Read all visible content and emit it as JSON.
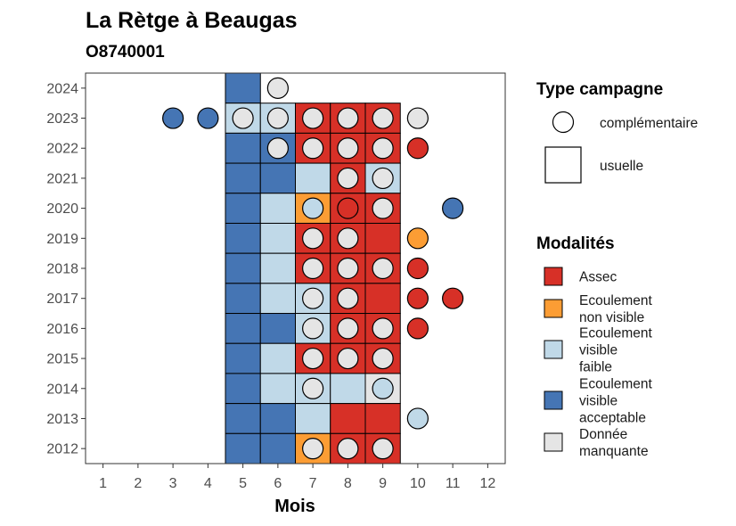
{
  "chart_data": {
    "type": "heatmap",
    "title": "La Rètge à Beaugas",
    "subtitle": "O8740001",
    "xlabel": "Mois",
    "ylabel": "",
    "x_ticks": [
      1,
      2,
      3,
      4,
      5,
      6,
      7,
      8,
      9,
      10,
      11,
      12
    ],
    "y_ticks": [
      2012,
      2013,
      2014,
      2015,
      2016,
      2017,
      2018,
      2019,
      2020,
      2021,
      2022,
      2023,
      2024
    ],
    "xlim": [
      0.5,
      12.5
    ],
    "ylim": [
      2011.5,
      2024.5
    ],
    "modalites": [
      {
        "key": "assec",
        "label": "Assec",
        "color": "#d73027"
      },
      {
        "key": "nonvisible",
        "label": "Ecoulement non visible",
        "color": "#fc9d34"
      },
      {
        "key": "faible",
        "label": "Ecoulement visible faible",
        "color": "#c0d9e8"
      },
      {
        "key": "acceptable",
        "label": "Ecoulement visible acceptable",
        "color": "#4575b4"
      },
      {
        "key": "manquante",
        "label": "Donnée manquante",
        "color": "#e5e5e5"
      }
    ],
    "campaign_types": [
      {
        "key": "complementaire",
        "label": "complémentaire",
        "shape": "circle"
      },
      {
        "key": "usuelle",
        "label": "usuelle",
        "shape": "square"
      }
    ],
    "usuelle": [
      {
        "year": 2024,
        "month": 5,
        "value": "acceptable"
      },
      {
        "year": 2023,
        "month": 5,
        "value": "faible"
      },
      {
        "year": 2023,
        "month": 6,
        "value": "faible"
      },
      {
        "year": 2023,
        "month": 7,
        "value": "assec"
      },
      {
        "year": 2023,
        "month": 8,
        "value": "assec"
      },
      {
        "year": 2023,
        "month": 9,
        "value": "assec"
      },
      {
        "year": 2022,
        "month": 5,
        "value": "acceptable"
      },
      {
        "year": 2022,
        "month": 6,
        "value": "acceptable"
      },
      {
        "year": 2022,
        "month": 7,
        "value": "assec"
      },
      {
        "year": 2022,
        "month": 8,
        "value": "assec"
      },
      {
        "year": 2022,
        "month": 9,
        "value": "assec"
      },
      {
        "year": 2021,
        "month": 5,
        "value": "acceptable"
      },
      {
        "year": 2021,
        "month": 6,
        "value": "acceptable"
      },
      {
        "year": 2021,
        "month": 7,
        "value": "faible"
      },
      {
        "year": 2021,
        "month": 8,
        "value": "assec"
      },
      {
        "year": 2021,
        "month": 9,
        "value": "faible"
      },
      {
        "year": 2020,
        "month": 5,
        "value": "acceptable"
      },
      {
        "year": 2020,
        "month": 6,
        "value": "faible"
      },
      {
        "year": 2020,
        "month": 7,
        "value": "nonvisible"
      },
      {
        "year": 2020,
        "month": 8,
        "value": "assec"
      },
      {
        "year": 2020,
        "month": 9,
        "value": "assec"
      },
      {
        "year": 2019,
        "month": 5,
        "value": "acceptable"
      },
      {
        "year": 2019,
        "month": 6,
        "value": "faible"
      },
      {
        "year": 2019,
        "month": 7,
        "value": "assec"
      },
      {
        "year": 2019,
        "month": 8,
        "value": "assec"
      },
      {
        "year": 2019,
        "month": 9,
        "value": "assec"
      },
      {
        "year": 2018,
        "month": 5,
        "value": "acceptable"
      },
      {
        "year": 2018,
        "month": 6,
        "value": "faible"
      },
      {
        "year": 2018,
        "month": 7,
        "value": "assec"
      },
      {
        "year": 2018,
        "month": 8,
        "value": "assec"
      },
      {
        "year": 2018,
        "month": 9,
        "value": "assec"
      },
      {
        "year": 2017,
        "month": 5,
        "value": "acceptable"
      },
      {
        "year": 2017,
        "month": 6,
        "value": "faible"
      },
      {
        "year": 2017,
        "month": 7,
        "value": "faible"
      },
      {
        "year": 2017,
        "month": 8,
        "value": "assec"
      },
      {
        "year": 2017,
        "month": 9,
        "value": "assec"
      },
      {
        "year": 2016,
        "month": 5,
        "value": "acceptable"
      },
      {
        "year": 2016,
        "month": 6,
        "value": "acceptable"
      },
      {
        "year": 2016,
        "month": 7,
        "value": "faible"
      },
      {
        "year": 2016,
        "month": 8,
        "value": "assec"
      },
      {
        "year": 2016,
        "month": 9,
        "value": "assec"
      },
      {
        "year": 2015,
        "month": 5,
        "value": "acceptable"
      },
      {
        "year": 2015,
        "month": 6,
        "value": "faible"
      },
      {
        "year": 2015,
        "month": 7,
        "value": "assec"
      },
      {
        "year": 2015,
        "month": 8,
        "value": "assec"
      },
      {
        "year": 2015,
        "month": 9,
        "value": "assec"
      },
      {
        "year": 2014,
        "month": 5,
        "value": "acceptable"
      },
      {
        "year": 2014,
        "month": 6,
        "value": "faible"
      },
      {
        "year": 2014,
        "month": 7,
        "value": "faible"
      },
      {
        "year": 2014,
        "month": 8,
        "value": "faible"
      },
      {
        "year": 2014,
        "month": 9,
        "value": "manquante"
      },
      {
        "year": 2013,
        "month": 5,
        "value": "acceptable"
      },
      {
        "year": 2013,
        "month": 6,
        "value": "acceptable"
      },
      {
        "year": 2013,
        "month": 7,
        "value": "faible"
      },
      {
        "year": 2013,
        "month": 8,
        "value": "assec"
      },
      {
        "year": 2013,
        "month": 9,
        "value": "assec"
      },
      {
        "year": 2012,
        "month": 5,
        "value": "acceptable"
      },
      {
        "year": 2012,
        "month": 6,
        "value": "acceptable"
      },
      {
        "year": 2012,
        "month": 7,
        "value": "nonvisible"
      },
      {
        "year": 2012,
        "month": 8,
        "value": "assec"
      },
      {
        "year": 2012,
        "month": 9,
        "value": "assec"
      }
    ],
    "complementaire": [
      {
        "year": 2024,
        "month": 6,
        "value": "manquante"
      },
      {
        "year": 2023,
        "month": 3,
        "value": "acceptable"
      },
      {
        "year": 2023,
        "month": 4,
        "value": "acceptable"
      },
      {
        "year": 2023,
        "month": 5,
        "value": "manquante"
      },
      {
        "year": 2023,
        "month": 6,
        "value": "manquante"
      },
      {
        "year": 2023,
        "month": 7,
        "value": "manquante"
      },
      {
        "year": 2023,
        "month": 8,
        "value": "manquante"
      },
      {
        "year": 2023,
        "month": 9,
        "value": "manquante"
      },
      {
        "year": 2023,
        "month": 10,
        "value": "manquante"
      },
      {
        "year": 2022,
        "month": 6,
        "value": "manquante"
      },
      {
        "year": 2022,
        "month": 7,
        "value": "manquante"
      },
      {
        "year": 2022,
        "month": 8,
        "value": "manquante"
      },
      {
        "year": 2022,
        "month": 9,
        "value": "manquante"
      },
      {
        "year": 2022,
        "month": 10,
        "value": "assec"
      },
      {
        "year": 2021,
        "month": 8,
        "value": "manquante"
      },
      {
        "year": 2021,
        "month": 9,
        "value": "manquante"
      },
      {
        "year": 2020,
        "month": 7,
        "value": "faible"
      },
      {
        "year": 2020,
        "month": 8,
        "value": "assec"
      },
      {
        "year": 2020,
        "month": 9,
        "value": "manquante"
      },
      {
        "year": 2020,
        "month": 11,
        "value": "acceptable"
      },
      {
        "year": 2019,
        "month": 7,
        "value": "manquante"
      },
      {
        "year": 2019,
        "month": 8,
        "value": "manquante"
      },
      {
        "year": 2019,
        "month": 10,
        "value": "nonvisible"
      },
      {
        "year": 2018,
        "month": 7,
        "value": "manquante"
      },
      {
        "year": 2018,
        "month": 8,
        "value": "manquante"
      },
      {
        "year": 2018,
        "month": 9,
        "value": "manquante"
      },
      {
        "year": 2018,
        "month": 10,
        "value": "assec"
      },
      {
        "year": 2017,
        "month": 7,
        "value": "manquante"
      },
      {
        "year": 2017,
        "month": 8,
        "value": "manquante"
      },
      {
        "year": 2017,
        "month": 10,
        "value": "assec"
      },
      {
        "year": 2017,
        "month": 11,
        "value": "assec"
      },
      {
        "year": 2016,
        "month": 7,
        "value": "manquante"
      },
      {
        "year": 2016,
        "month": 8,
        "value": "manquante"
      },
      {
        "year": 2016,
        "month": 9,
        "value": "manquante"
      },
      {
        "year": 2016,
        "month": 10,
        "value": "assec"
      },
      {
        "year": 2015,
        "month": 7,
        "value": "manquante"
      },
      {
        "year": 2015,
        "month": 8,
        "value": "manquante"
      },
      {
        "year": 2015,
        "month": 9,
        "value": "manquante"
      },
      {
        "year": 2014,
        "month": 7,
        "value": "manquante"
      },
      {
        "year": 2014,
        "month": 9,
        "value": "faible"
      },
      {
        "year": 2013,
        "month": 10,
        "value": "faible"
      },
      {
        "year": 2012,
        "month": 7,
        "value": "manquante"
      },
      {
        "year": 2012,
        "month": 8,
        "value": "manquante"
      },
      {
        "year": 2012,
        "month": 9,
        "value": "manquante"
      }
    ]
  },
  "legend": {
    "type_title": "Type campagne",
    "modalites_title": "Modalités",
    "modalites_lines": {
      "assec": [
        "Assec"
      ],
      "nonvisible": [
        "Ecoulement",
        "non visible"
      ],
      "faible": [
        "Ecoulement",
        "visible",
        "faible"
      ],
      "acceptable": [
        "Ecoulement",
        "visible",
        "acceptable"
      ],
      "manquante": [
        "Donnée",
        "manquante"
      ]
    }
  }
}
